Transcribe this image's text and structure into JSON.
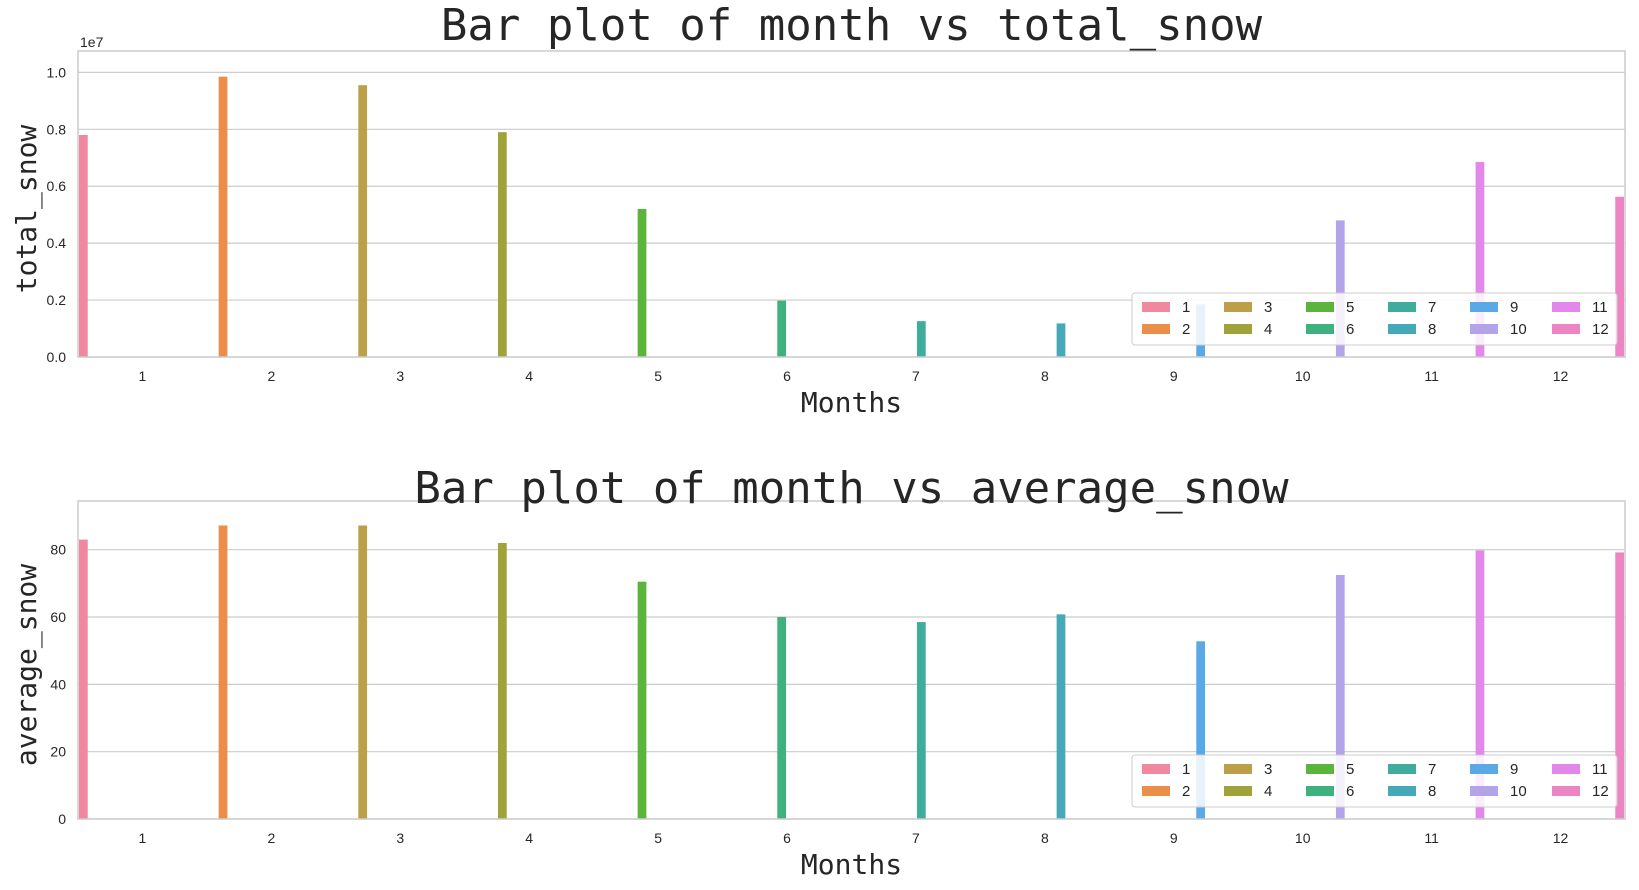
{
  "chart_data": [
    {
      "type": "bar",
      "title": "Bar plot of month vs total_snow",
      "xlabel": "Months",
      "ylabel": "total_snow",
      "y_offset_label": "1e7",
      "categories": [
        "1",
        "2",
        "3",
        "4",
        "5",
        "6",
        "7",
        "8",
        "9",
        "10",
        "11",
        "12"
      ],
      "values": [
        7800000,
        9850000,
        9550000,
        7900000,
        5200000,
        1980000,
        1260000,
        1180000,
        1850000,
        4800000,
        6850000,
        5630000
      ],
      "ylim": [
        0,
        10400000
      ],
      "yticks": [
        0,
        2000000,
        4000000,
        6000000,
        8000000,
        10000000
      ],
      "ytick_labels": [
        "0.0",
        "0.2",
        "0.4",
        "0.6",
        "0.8",
        "1.0"
      ],
      "legend": [
        "1",
        "2",
        "3",
        "4",
        "5",
        "6",
        "7",
        "8",
        "9",
        "10",
        "11",
        "12"
      ],
      "legend_placement": "lower-right",
      "grid": true
    },
    {
      "type": "bar",
      "title": "Bar plot of month vs average_snow",
      "xlabel": "Months",
      "ylabel": "average_snow",
      "categories": [
        "1",
        "2",
        "3",
        "4",
        "5",
        "6",
        "7",
        "8",
        "9",
        "10",
        "11",
        "12"
      ],
      "values": [
        83,
        87.2,
        87.2,
        82,
        70.5,
        60,
        58.5,
        60.8,
        52.8,
        72.5,
        79.8,
        79.2
      ],
      "ylim": [
        0,
        91.5
      ],
      "yticks": [
        0,
        20,
        40,
        60,
        80
      ],
      "ytick_labels": [
        "0",
        "20",
        "40",
        "60",
        "80"
      ],
      "legend": [
        "1",
        "2",
        "3",
        "4",
        "5",
        "6",
        "7",
        "8",
        "9",
        "10",
        "11",
        "12"
      ],
      "legend_placement": "lower-right",
      "grid": true
    }
  ],
  "colors": [
    "#f0899f",
    "#ea8e49",
    "#bc9f48",
    "#9fa339",
    "#5bb53c",
    "#3fb17e",
    "#40ac9c",
    "#45a9b9",
    "#5aa9e6",
    "#b3a4ea",
    "#e288ea",
    "#ed85c5"
  ]
}
